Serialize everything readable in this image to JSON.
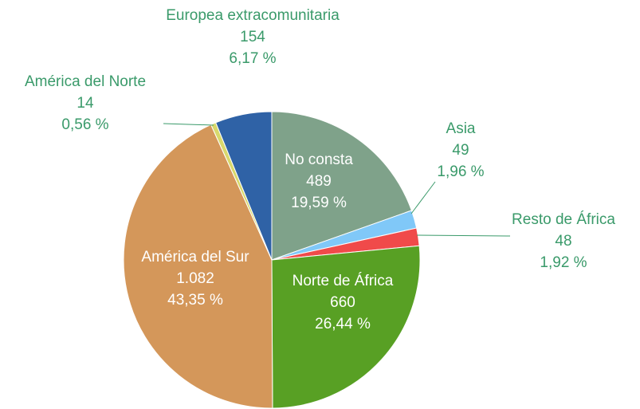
{
  "chart_data": {
    "type": "pie",
    "categories": [
      "No consta",
      "Asia",
      "Resto de África",
      "Norte de África",
      "América del Sur",
      "América del Norte",
      "Europea extracomunitaria"
    ],
    "values": [
      489,
      49,
      48,
      660,
      1082,
      14,
      154
    ],
    "value_labels": [
      "489",
      "49",
      "48",
      "660",
      "1.082",
      "14",
      "154"
    ],
    "percent_labels": [
      "19,59 %",
      "1,96 %",
      "1,92 %",
      "26,44 %",
      "43,35 %",
      "0,56 %",
      "6,17 %"
    ],
    "colors": [
      "#7fa28a",
      "#80c8f8",
      "#f04a4a",
      "#58a024",
      "#d4975a",
      "#d8d86c",
      "#2f62a6"
    ]
  }
}
